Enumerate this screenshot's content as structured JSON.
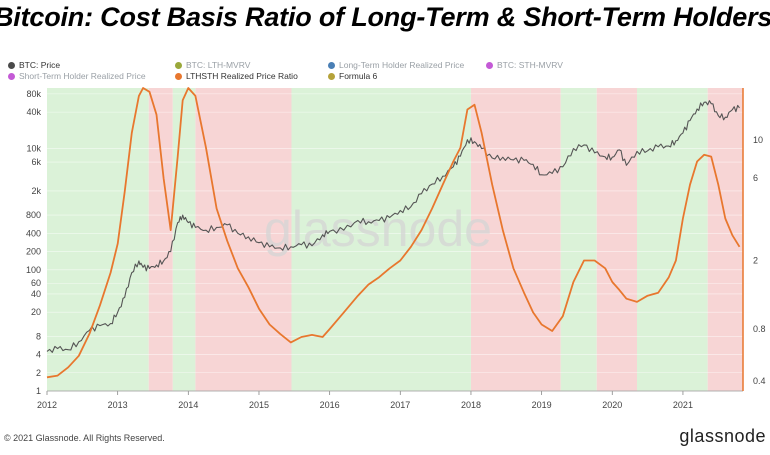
{
  "header": {
    "title": "Bitcoin: Cost Basis Ratio of Long-Term & Short-Term Holders"
  },
  "legend": [
    {
      "label": "BTC: Price",
      "color": "#4a4a4a",
      "active": true
    },
    {
      "label": "BTC: LTH-MVRV",
      "color": "#9aa83a",
      "active": false
    },
    {
      "label": "Long-Term Holder Realized Price",
      "color": "#4a7fb5",
      "active": false
    },
    {
      "label": "BTC: STH-MVRV",
      "color": "#c45ad6",
      "active": false
    },
    {
      "label": "Short-Term Holder Realized Price",
      "color": "#c45ad6",
      "active": false
    },
    {
      "label": "LTHSTH Realized Price Ratio",
      "color": "#e8772e",
      "active": true
    },
    {
      "label": "Formula 6",
      "color": "#b5a23a",
      "active": true
    }
  ],
  "footer": {
    "copyright": "© 2021 Glassnode. All Rights Reserved.",
    "logo": "glassnode",
    "watermark": "glassnode"
  },
  "chart_data": {
    "type": "line",
    "title": "Bitcoin: Cost Basis Ratio of Long-Term & Short-Term Holders",
    "x_ticks": [
      "2012",
      "2013",
      "2014",
      "2015",
      "2016",
      "2017",
      "2018",
      "2019",
      "2020",
      "2021"
    ],
    "x_range": [
      2012.0,
      2021.85
    ],
    "y_left_scale": "log",
    "y_left_range": [
      1,
      100000
    ],
    "y_left_ticks": [
      "1",
      "2",
      "4",
      "8",
      "20",
      "40",
      "60",
      "100",
      "200",
      "400",
      "800",
      "2k",
      "6k",
      "10k",
      "40k",
      "80k"
    ],
    "y_right_scale": "log",
    "y_right_range": [
      0.35,
      20
    ],
    "y_right_ticks": [
      "0.4",
      "0.8",
      "2",
      "6",
      "10"
    ],
    "grid": true,
    "legend_position": "top-left",
    "background_bands": [
      {
        "from": 2012.0,
        "to": 2013.44,
        "color": "green"
      },
      {
        "from": 2013.44,
        "to": 2013.78,
        "color": "red"
      },
      {
        "from": 2013.78,
        "to": 2014.1,
        "color": "green"
      },
      {
        "from": 2014.1,
        "to": 2015.46,
        "color": "red"
      },
      {
        "from": 2015.46,
        "to": 2018.0,
        "color": "green"
      },
      {
        "from": 2018.0,
        "to": 2019.27,
        "color": "red"
      },
      {
        "from": 2019.27,
        "to": 2019.78,
        "color": "green"
      },
      {
        "from": 2019.78,
        "to": 2020.35,
        "color": "red"
      },
      {
        "from": 2020.35,
        "to": 2021.35,
        "color": "green"
      },
      {
        "from": 2021.35,
        "to": 2021.85,
        "color": "red"
      }
    ],
    "series": [
      {
        "name": "BTC: Price",
        "color": "#555555",
        "axis": "left",
        "x": [
          2012.0,
          2012.15,
          2012.3,
          2012.45,
          2012.6,
          2012.75,
          2012.9,
          2013.0,
          2013.1,
          2013.2,
          2013.3,
          2013.36,
          2013.45,
          2013.55,
          2013.65,
          2013.75,
          2013.85,
          2013.92,
          2014.0,
          2014.1,
          2014.25,
          2014.4,
          2014.55,
          2014.7,
          2014.85,
          2015.0,
          2015.15,
          2015.3,
          2015.45,
          2015.6,
          2015.75,
          2015.9,
          2016.0,
          2016.2,
          2016.4,
          2016.55,
          2016.7,
          2016.85,
          2017.0,
          2017.15,
          2017.3,
          2017.45,
          2017.6,
          2017.75,
          2017.85,
          2017.95,
          2018.05,
          2018.15,
          2018.3,
          2018.45,
          2018.6,
          2018.75,
          2018.88,
          2019.0,
          2019.15,
          2019.3,
          2019.45,
          2019.6,
          2019.75,
          2019.9,
          2020.0,
          2020.1,
          2020.2,
          2020.35,
          2020.5,
          2020.65,
          2020.8,
          2020.9,
          2021.0,
          2021.1,
          2021.2,
          2021.3,
          2021.4,
          2021.5,
          2021.6,
          2021.7,
          2021.8
        ],
        "values": [
          4.5,
          5,
          4.8,
          6.5,
          10,
          12,
          13,
          20,
          35,
          90,
          140,
          110,
          105,
          120,
          140,
          200,
          600,
          800,
          600,
          500,
          450,
          500,
          550,
          400,
          350,
          280,
          240,
          230,
          240,
          260,
          250,
          380,
          430,
          450,
          650,
          620,
          650,
          730,
          950,
          1100,
          1800,
          2600,
          3500,
          5000,
          7500,
          14000,
          13000,
          10000,
          7000,
          7200,
          6500,
          6400,
          5500,
          3700,
          3900,
          5000,
          10000,
          11500,
          8500,
          7300,
          7200,
          9500,
          5300,
          9000,
          9200,
          10700,
          11000,
          13500,
          18000,
          29000,
          45000,
          58000,
          55000,
          35000,
          33000,
          44000,
          47000
        ]
      },
      {
        "name": "LTHSTH Realized Price Ratio",
        "color": "#e8772e",
        "axis": "right",
        "x": [
          2012.0,
          2012.15,
          2012.3,
          2012.45,
          2012.6,
          2012.75,
          2012.9,
          2013.0,
          2013.1,
          2013.2,
          2013.3,
          2013.36,
          2013.45,
          2013.55,
          2013.65,
          2013.75,
          2013.85,
          2013.92,
          2014.0,
          2014.1,
          2014.25,
          2014.4,
          2014.55,
          2014.7,
          2014.85,
          2015.0,
          2015.15,
          2015.3,
          2015.45,
          2015.6,
          2015.75,
          2015.9,
          2016.0,
          2016.2,
          2016.4,
          2016.55,
          2016.7,
          2016.85,
          2017.0,
          2017.15,
          2017.3,
          2017.45,
          2017.6,
          2017.75,
          2017.85,
          2017.95,
          2018.05,
          2018.15,
          2018.3,
          2018.45,
          2018.6,
          2018.75,
          2018.88,
          2019.0,
          2019.15,
          2019.3,
          2019.45,
          2019.6,
          2019.75,
          2019.9,
          2020.0,
          2020.1,
          2020.2,
          2020.35,
          2020.5,
          2020.65,
          2020.8,
          2020.9,
          2021.0,
          2021.1,
          2021.2,
          2021.3,
          2021.4,
          2021.5,
          2021.6,
          2021.7,
          2021.8
        ],
        "values": [
          0.42,
          0.43,
          0.48,
          0.56,
          0.75,
          1.1,
          1.7,
          2.5,
          5,
          11,
          18,
          20,
          19,
          14,
          6,
          3.0,
          8,
          17,
          20,
          18,
          9,
          4,
          2.6,
          1.8,
          1.4,
          1.05,
          0.85,
          0.75,
          0.67,
          0.72,
          0.74,
          0.72,
          0.8,
          1.0,
          1.25,
          1.45,
          1.6,
          1.8,
          2.0,
          2.4,
          3.0,
          4.0,
          5.5,
          7.5,
          9,
          15,
          16,
          11,
          5.5,
          3.0,
          1.8,
          1.3,
          1.0,
          0.85,
          0.78,
          0.95,
          1.5,
          2.0,
          2.0,
          1.8,
          1.5,
          1.35,
          1.2,
          1.15,
          1.25,
          1.3,
          1.6,
          2.0,
          3.5,
          5.5,
          7.5,
          8.2,
          8.0,
          5.5,
          3.5,
          2.8,
          2.4
        ]
      }
    ]
  }
}
